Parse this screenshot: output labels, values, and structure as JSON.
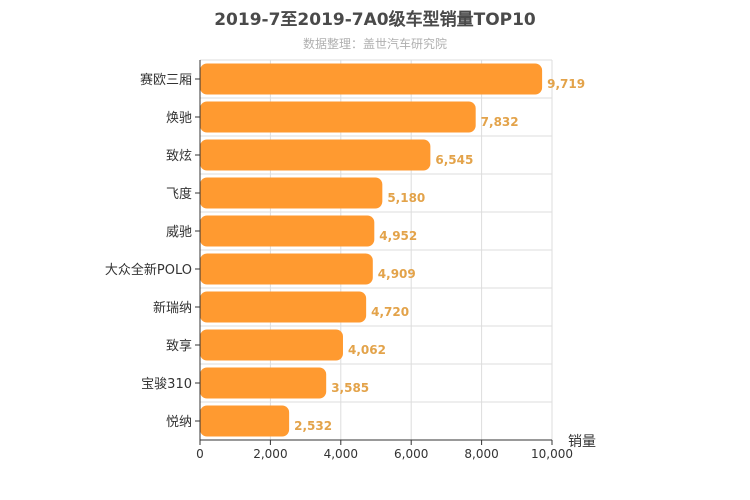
{
  "chart_data": {
    "type": "bar",
    "orientation": "horizontal",
    "title": "2019-7至2019-7A0级车型销量TOP10",
    "subtitle": "数据整理：盖世汽车研究院",
    "xlabel": "销量",
    "ylabel": "",
    "categories": [
      "赛欧三厢",
      "焕驰",
      "致炫",
      "飞度",
      "威驰",
      "大众全新POLO",
      "新瑞纳",
      "致享",
      "宝骏310",
      "悦纳"
    ],
    "values": [
      9719,
      7832,
      6545,
      5180,
      4952,
      4909,
      4720,
      4062,
      3585,
      2532
    ],
    "value_labels": [
      "9,719",
      "7,832",
      "6,545",
      "5,180",
      "4,952",
      "4,909",
      "4,720",
      "4,062",
      "3,585",
      "2,532"
    ],
    "xlim": [
      0,
      10000
    ],
    "xticks": [
      0,
      2000,
      4000,
      6000,
      8000,
      10000
    ],
    "xtick_labels": [
      "0",
      "2,000",
      "4,000",
      "6,000",
      "8,000",
      "10,000"
    ],
    "grid": true,
    "legend": "none",
    "colors": {
      "bar": "#ff9a30",
      "data_label": "#e3a34a",
      "grid": "#dddddd",
      "axis": "#333333"
    }
  }
}
